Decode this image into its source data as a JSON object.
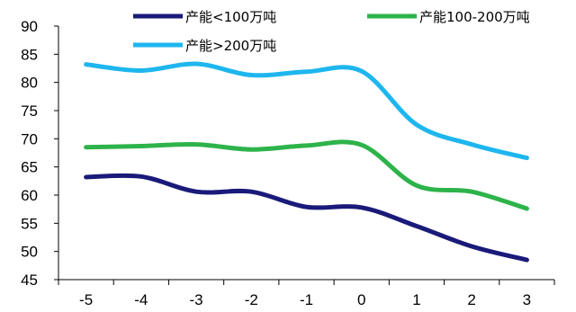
{
  "chart_data": {
    "type": "line",
    "title": "",
    "xlabel": "",
    "ylabel": "",
    "x": [
      -5,
      -4,
      -3,
      -2,
      -1,
      0,
      1,
      2,
      3
    ],
    "ylim": [
      45,
      90
    ],
    "yticks": [
      45,
      50,
      55,
      60,
      65,
      70,
      75,
      80,
      85,
      90
    ],
    "grid": false,
    "legend_position": "top",
    "series": [
      {
        "name": "产能<100万吨",
        "color": "#1a1a7a",
        "values": [
          63.2,
          63.3,
          60.6,
          60.6,
          57.9,
          57.8,
          54.5,
          50.9,
          48.5
        ]
      },
      {
        "name": "产能100-200万吨",
        "color": "#2db34a",
        "values": [
          68.5,
          68.7,
          69.0,
          68.1,
          68.8,
          68.9,
          61.7,
          60.6,
          57.6
        ]
      },
      {
        "name": "产能>200万吨",
        "color": "#1eb6ee",
        "values": [
          83.2,
          82.1,
          83.3,
          81.3,
          81.9,
          82.0,
          72.5,
          69.0,
          66.6
        ]
      }
    ]
  }
}
